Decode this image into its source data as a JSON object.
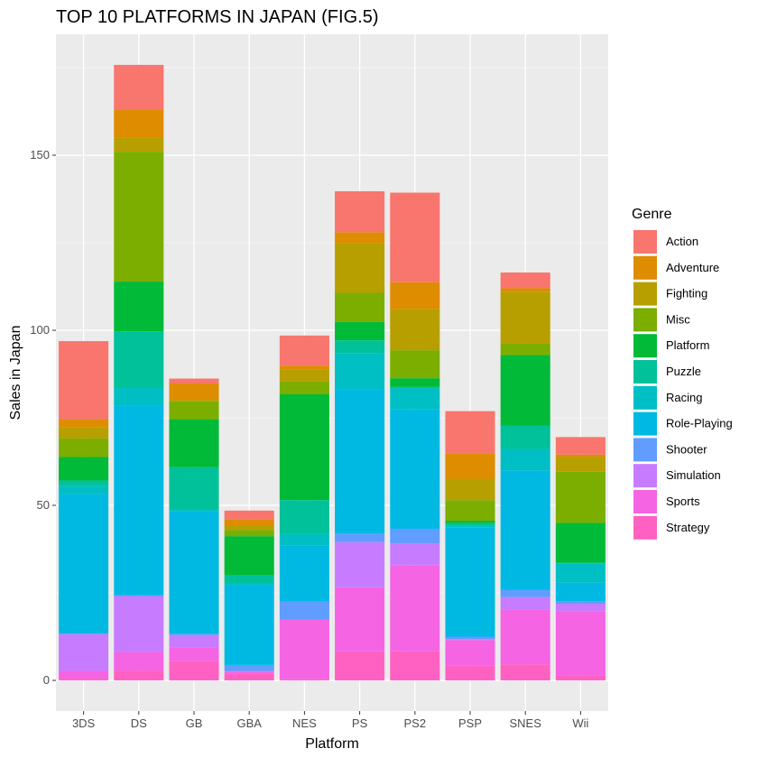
{
  "chart_data": {
    "type": "bar",
    "stacked": true,
    "title": "TOP 10 PLATFORMS IN JAPAN (FIG.5)",
    "xlabel": "Platform",
    "ylabel": "Sales in Japan",
    "ylim": [
      0,
      180
    ],
    "yticks": [
      0,
      50,
      100,
      150
    ],
    "grid": true,
    "legend": {
      "title": "Genre",
      "position": "right"
    },
    "categories": [
      "3DS",
      "DS",
      "GB",
      "GBA",
      "NES",
      "PS",
      "PS2",
      "PSP",
      "SNES",
      "Wii"
    ],
    "series": [
      {
        "name": "Strategy",
        "color": "#FF61C3",
        "values": [
          0.5,
          2.8,
          5.5,
          2.0,
          0.3,
          8.3,
          8.3,
          4.3,
          4.6,
          1.5
        ]
      },
      {
        "name": "Sports",
        "color": "#F564E3",
        "values": [
          2.2,
          5.3,
          3.8,
          0.5,
          17.0,
          18.3,
          24.5,
          7.2,
          15.6,
          18.3
        ]
      },
      {
        "name": "Simulation",
        "color": "#C77CFF",
        "values": [
          10.5,
          16.0,
          3.7,
          0.2,
          0.0,
          12.9,
          6.3,
          0.3,
          3.6,
          2.1
        ]
      },
      {
        "name": "Shooter",
        "color": "#619CFF",
        "values": [
          0.2,
          0.2,
          0.2,
          1.7,
          5.2,
          2.5,
          4.2,
          0.7,
          2.1,
          0.7
        ]
      },
      {
        "name": "Role-Playing",
        "color": "#00B9E3",
        "values": [
          39.8,
          54.2,
          35.1,
          22.9,
          16.1,
          41.1,
          34.1,
          31.1,
          34.1,
          5.3
        ]
      },
      {
        "name": "Racing",
        "color": "#00BFC4",
        "values": [
          2.3,
          5.0,
          0.4,
          0.4,
          3.3,
          10.4,
          6.1,
          0.5,
          6.1,
          5.4
        ]
      },
      {
        "name": "Puzzle",
        "color": "#00C19A",
        "values": [
          1.6,
          16.2,
          12.2,
          2.3,
          9.6,
          3.6,
          0.3,
          0.8,
          6.6,
          0.3
        ]
      },
      {
        "name": "Platform",
        "color": "#00BA38",
        "values": [
          6.7,
          14.2,
          13.7,
          11.2,
          30.2,
          5.3,
          2.5,
          0.7,
          20.2,
          11.4
        ]
      },
      {
        "name": "Misc",
        "color": "#7CAE00",
        "values": [
          5.3,
          37.1,
          5.1,
          1.8,
          3.7,
          8.3,
          8.0,
          5.9,
          3.4,
          14.6
        ]
      },
      {
        "name": "Fighting",
        "color": "#B79F00",
        "values": [
          3.1,
          4.0,
          0.7,
          1.2,
          3.3,
          14.2,
          11.8,
          6.1,
          14.7,
          4.3
        ]
      },
      {
        "name": "Adventure",
        "color": "#DE8C00",
        "values": [
          2.4,
          8.0,
          4.4,
          1.7,
          1.2,
          3.1,
          7.6,
          7.3,
          1.0,
          0.6
        ]
      },
      {
        "name": "Action",
        "color": "#F8766D",
        "values": [
          22.3,
          12.8,
          1.4,
          2.6,
          8.6,
          11.7,
          25.6,
          12.0,
          4.5,
          5.0
        ]
      }
    ]
  }
}
